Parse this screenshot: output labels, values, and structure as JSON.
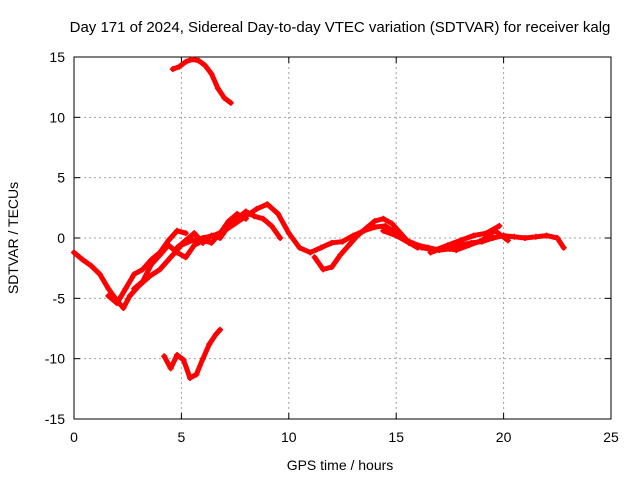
{
  "chart_data": {
    "type": "line",
    "title": "Day 171 of 2024, Sidereal Day-to-day VTEC variation (SDTVAR) for receiver kalg",
    "xlabel": "GPS time / hours",
    "ylabel": "SDTVAR / TECUs",
    "xlim": [
      0,
      25
    ],
    "ylim": [
      -15,
      15
    ],
    "xticks": [
      0,
      5,
      10,
      15,
      20,
      25
    ],
    "yticks": [
      -15,
      -10,
      -5,
      0,
      5,
      10,
      15
    ],
    "grid": true,
    "color": "#ff0000",
    "series": [
      {
        "name": "arc-upper",
        "x": [
          4.6,
          4.9,
          5.2,
          5.5,
          5.8,
          6.1,
          6.4,
          6.7,
          7.0,
          7.3
        ],
        "y": [
          14.0,
          14.2,
          14.6,
          14.8,
          14.7,
          14.3,
          13.6,
          12.4,
          11.6,
          11.2
        ]
      },
      {
        "name": "arc-lower",
        "x": [
          4.2,
          4.5,
          4.8,
          5.1,
          5.4,
          5.7,
          6.0,
          6.3,
          6.6,
          6.8
        ],
        "y": [
          -9.8,
          -10.8,
          -9.7,
          -10.1,
          -11.6,
          -11.3,
          -10.0,
          -8.8,
          -8.0,
          -7.6
        ]
      },
      {
        "name": "arc-main-1",
        "x": [
          0.0,
          0.4,
          0.8,
          1.2,
          1.6,
          2.0,
          2.3,
          2.6,
          3.0,
          3.5,
          4.0,
          4.5,
          5.0,
          5.5,
          6.0,
          6.5,
          7.0,
          7.5,
          8.0,
          8.5,
          9.0,
          9.5,
          10.0,
          10.5,
          11.0,
          11.5,
          12.0,
          12.5,
          13.0,
          13.5,
          14.0,
          14.5,
          15.0,
          15.5,
          16.0,
          16.5,
          17.0,
          17.5,
          18.0,
          18.5,
          19.0,
          19.5,
          20.0,
          20.5,
          21.0,
          21.5,
          22.0,
          22.5,
          22.8
        ],
        "y": [
          -1.2,
          -1.8,
          -2.3,
          -3.0,
          -4.2,
          -5.2,
          -5.8,
          -4.8,
          -4.0,
          -3.2,
          -2.6,
          -1.6,
          -0.6,
          -0.2,
          0.0,
          0.2,
          0.6,
          1.2,
          1.8,
          2.4,
          2.8,
          2.0,
          0.4,
          -0.8,
          -1.2,
          -0.8,
          -0.4,
          -0.3,
          0.2,
          0.6,
          0.9,
          1.0,
          0.4,
          -0.2,
          -0.6,
          -0.8,
          -1.0,
          -0.9,
          -0.6,
          -0.4,
          -0.3,
          0.0,
          0.2,
          0.1,
          0.0,
          0.1,
          0.2,
          0.0,
          -0.8
        ]
      },
      {
        "name": "arc-main-2",
        "x": [
          1.6,
          2.0,
          2.4,
          2.8,
          3.2,
          3.6,
          4.0,
          4.4,
          4.8,
          5.2
        ],
        "y": [
          -4.8,
          -5.4,
          -4.2,
          -3.0,
          -2.6,
          -1.8,
          -1.2,
          -0.2,
          0.6,
          0.4
        ]
      },
      {
        "name": "arc-main-3",
        "x": [
          2.8,
          3.2,
          3.6,
          4.0,
          4.4,
          4.8,
          5.2,
          5.6,
          6.0,
          6.4,
          6.8,
          7.2,
          7.6,
          8.0
        ],
        "y": [
          -4.2,
          -3.6,
          -2.2,
          -1.4,
          -0.6,
          -1.2,
          -1.6,
          -0.6,
          -0.2,
          -0.4,
          0.4,
          1.4,
          2.0,
          1.6
        ]
      },
      {
        "name": "arc-main-4",
        "x": [
          4.8,
          5.2,
          5.6,
          6.0,
          6.4,
          6.8,
          7.2,
          7.6,
          8.0,
          8.4,
          8.8,
          9.2,
          9.6
        ],
        "y": [
          -0.8,
          -0.2,
          0.4,
          -0.4,
          0.2,
          0.0,
          1.0,
          1.6,
          2.2,
          1.8,
          1.6,
          1.0,
          0.0
        ],
        "note": ""
      },
      {
        "name": "arc-mid-1",
        "x": [
          11.2,
          11.6,
          12.0,
          12.4,
          12.8,
          13.2,
          13.6,
          14.0,
          14.4,
          14.8,
          15.2,
          15.6,
          16.0
        ],
        "y": [
          -1.6,
          -2.6,
          -2.4,
          -1.4,
          -0.6,
          0.2,
          0.8,
          1.4,
          1.6,
          1.2,
          0.4,
          -0.4,
          -0.8
        ]
      },
      {
        "name": "arc-mid-2",
        "x": [
          14.4,
          15.0,
          15.6,
          16.2,
          16.8,
          17.4,
          18.0,
          18.6,
          19.2,
          19.8
        ],
        "y": [
          0.6,
          0.2,
          -0.4,
          -0.8,
          -1.0,
          -0.6,
          -0.2,
          0.2,
          0.4,
          1.0
        ]
      },
      {
        "name": "arc-mid-3",
        "x": [
          16.6,
          17.2,
          17.8,
          18.4,
          19.0,
          19.6,
          20.2
        ],
        "y": [
          -1.2,
          -0.8,
          -1.0,
          -0.6,
          -0.2,
          0.6,
          -0.2
        ]
      }
    ]
  }
}
